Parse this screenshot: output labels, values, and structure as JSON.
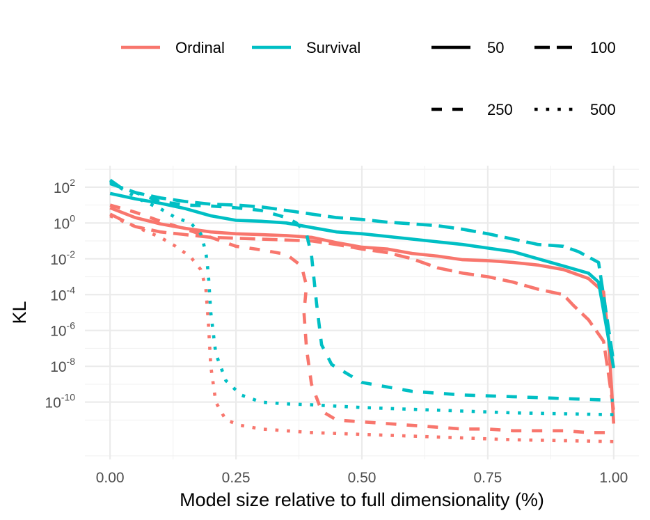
{
  "chart_data": {
    "type": "line",
    "title": "",
    "xlabel": "Model size relative to full dimensionality (%)",
    "ylabel": "KL",
    "y_scale": "log10",
    "xlim": [
      -0.05,
      1.05
    ],
    "ylim_log10": [
      -13.2,
      3.2
    ],
    "x_ticks": [
      {
        "value": 0,
        "label": "0.00"
      },
      {
        "value": 0.25,
        "label": "0.25"
      },
      {
        "value": 0.5,
        "label": "0.50"
      },
      {
        "value": 0.75,
        "label": "0.75"
      },
      {
        "value": 1,
        "label": "1.00"
      }
    ],
    "y_ticks": [
      {
        "exp": 2,
        "base": "10",
        "sup": "2"
      },
      {
        "exp": 0,
        "base": "10",
        "sup": "0"
      },
      {
        "exp": -2,
        "base": "10",
        "sup": "-2"
      },
      {
        "exp": -4,
        "base": "10",
        "sup": "-4"
      },
      {
        "exp": -6,
        "base": "10",
        "sup": "-6"
      },
      {
        "exp": -8,
        "base": "10",
        "sup": "-8"
      },
      {
        "exp": -10,
        "base": "10",
        "sup": "-10"
      }
    ],
    "y_minor": [
      3,
      1,
      -1,
      -3,
      -5,
      -7,
      -9,
      -11,
      -13
    ],
    "legend": {
      "placement": "top",
      "colour": [
        {
          "name": "Ordinal",
          "color": "#F8766D"
        },
        {
          "name": "Survival",
          "color": "#00BFC4"
        }
      ],
      "linetype": [
        {
          "name": "50",
          "dash": "solid"
        },
        {
          "name": "100",
          "dash": "longdash"
        },
        {
          "name": "250",
          "dash": "dashed"
        },
        {
          "name": "500",
          "dash": "dotted"
        }
      ]
    },
    "series": [
      {
        "name": "Ordinal 50",
        "group": "Ordinal",
        "size": "50",
        "x": [
          0,
          0.05,
          0.1,
          0.15,
          0.2,
          0.25,
          0.3,
          0.35,
          0.4,
          0.45,
          0.5,
          0.55,
          0.6,
          0.65,
          0.7,
          0.75,
          0.8,
          0.85,
          0.9,
          0.95,
          0.98,
          0.99,
          1.0
        ],
        "log10y": [
          0.85,
          0.3,
          -0.05,
          -0.3,
          -0.5,
          -0.6,
          -0.65,
          -0.7,
          -0.8,
          -1.1,
          -1.35,
          -1.45,
          -1.7,
          -1.85,
          -2.05,
          -2.1,
          -2.2,
          -2.35,
          -2.6,
          -3.1,
          -3.85,
          -6.5,
          -11.2
        ]
      },
      {
        "name": "Ordinal 100",
        "group": "Ordinal",
        "size": "100",
        "x": [
          0,
          0.05,
          0.1,
          0.15,
          0.2,
          0.25,
          0.3,
          0.35,
          0.4,
          0.45,
          0.5,
          0.55,
          0.6,
          0.65,
          0.7,
          0.75,
          0.8,
          0.85,
          0.9,
          0.92,
          0.95,
          0.98,
          0.99,
          1.0
        ],
        "log10y": [
          0.5,
          -0.2,
          -0.5,
          -0.65,
          -0.8,
          -0.85,
          -0.9,
          -0.95,
          -1.0,
          -1.2,
          -1.45,
          -1.65,
          -2.0,
          -2.5,
          -2.8,
          -3.0,
          -3.3,
          -3.7,
          -4.0,
          -4.6,
          -5.4,
          -6.6,
          -8.5,
          -10.5
        ]
      },
      {
        "name": "Ordinal 250",
        "group": "Ordinal",
        "size": "250",
        "x": [
          0,
          0.05,
          0.1,
          0.15,
          0.2,
          0.25,
          0.3,
          0.35,
          0.38,
          0.39,
          0.385,
          0.39,
          0.4,
          0.42,
          0.45,
          0.5,
          0.55,
          0.6,
          0.65,
          0.7,
          0.75,
          0.8,
          0.85,
          0.9,
          0.95,
          1.0
        ],
        "log10y": [
          1.0,
          0.6,
          0.1,
          -0.35,
          -0.8,
          -1.3,
          -1.5,
          -1.75,
          -2.4,
          -3.5,
          -5.0,
          -7.0,
          -9.0,
          -10.5,
          -11.0,
          -11.1,
          -11.2,
          -11.3,
          -11.4,
          -11.5,
          -11.5,
          -11.6,
          -11.6,
          -11.6,
          -11.7,
          -11.7
        ]
      },
      {
        "name": "Ordinal 500",
        "group": "Ordinal",
        "size": "500",
        "x": [
          0,
          0.05,
          0.1,
          0.13,
          0.16,
          0.18,
          0.19,
          0.195,
          0.2,
          0.21,
          0.23,
          0.26,
          0.3,
          0.4,
          0.5,
          0.6,
          0.7,
          0.8,
          0.9,
          1.0
        ],
        "log10y": [
          0.4,
          -0.2,
          -0.8,
          -1.3,
          -1.9,
          -2.6,
          -3.6,
          -5.5,
          -8.0,
          -10.0,
          -11.0,
          -11.3,
          -11.5,
          -11.7,
          -11.8,
          -11.9,
          -12.0,
          -12.1,
          -12.15,
          -12.2
        ]
      },
      {
        "name": "Survival 50",
        "group": "Survival",
        "size": "50",
        "x": [
          0,
          0.05,
          0.1,
          0.15,
          0.2,
          0.25,
          0.3,
          0.35,
          0.4,
          0.45,
          0.5,
          0.55,
          0.6,
          0.65,
          0.7,
          0.75,
          0.8,
          0.85,
          0.9,
          0.95,
          0.97,
          1.0
        ],
        "log10y": [
          1.65,
          1.35,
          1.1,
          0.8,
          0.4,
          0.15,
          0.1,
          0.0,
          -0.25,
          -0.5,
          -0.6,
          -0.75,
          -0.9,
          -1.05,
          -1.2,
          -1.4,
          -1.6,
          -2.0,
          -2.4,
          -2.8,
          -3.3,
          -8.1
        ]
      },
      {
        "name": "Survival 100",
        "group": "Survival",
        "size": "100",
        "x": [
          0,
          0.02,
          0.05,
          0.1,
          0.15,
          0.2,
          0.25,
          0.3,
          0.35,
          0.4,
          0.45,
          0.5,
          0.55,
          0.6,
          0.65,
          0.7,
          0.75,
          0.8,
          0.85,
          0.9,
          0.93,
          0.95,
          0.97,
          1.0
        ],
        "log10y": [
          2.4,
          2.0,
          1.7,
          1.4,
          1.2,
          1.05,
          1.0,
          0.9,
          0.7,
          0.5,
          0.3,
          0.2,
          0.05,
          -0.05,
          -0.15,
          -0.35,
          -0.6,
          -0.9,
          -1.2,
          -1.3,
          -1.6,
          -1.9,
          -2.2,
          -7.8
        ]
      },
      {
        "name": "Survival 250",
        "group": "Survival",
        "size": "250",
        "x": [
          0,
          0.05,
          0.1,
          0.15,
          0.2,
          0.25,
          0.3,
          0.35,
          0.37,
          0.39,
          0.4,
          0.41,
          0.42,
          0.44,
          0.5,
          0.6,
          0.7,
          0.8,
          0.9,
          1.0
        ],
        "log10y": [
          2.2,
          1.7,
          1.2,
          1.0,
          0.95,
          0.85,
          0.7,
          0.3,
          0.0,
          -0.6,
          -1.8,
          -4.5,
          -6.8,
          -7.9,
          -8.9,
          -9.4,
          -9.6,
          -9.7,
          -9.8,
          -9.9
        ]
      },
      {
        "name": "Survival 500",
        "group": "Survival",
        "size": "500",
        "x": [
          0,
          0.03,
          0.06,
          0.1,
          0.13,
          0.16,
          0.18,
          0.19,
          0.195,
          0.2,
          0.21,
          0.23,
          0.26,
          0.3,
          0.35,
          0.4,
          0.5,
          0.6,
          0.7,
          0.8,
          0.9,
          1.0
        ],
        "log10y": [
          2.3,
          1.8,
          1.3,
          0.8,
          0.3,
          0.0,
          -0.6,
          -1.6,
          -2.8,
          -5.0,
          -7.3,
          -8.8,
          -9.6,
          -10.0,
          -10.1,
          -10.15,
          -10.3,
          -10.4,
          -10.5,
          -10.6,
          -10.65,
          -10.7
        ]
      }
    ]
  }
}
